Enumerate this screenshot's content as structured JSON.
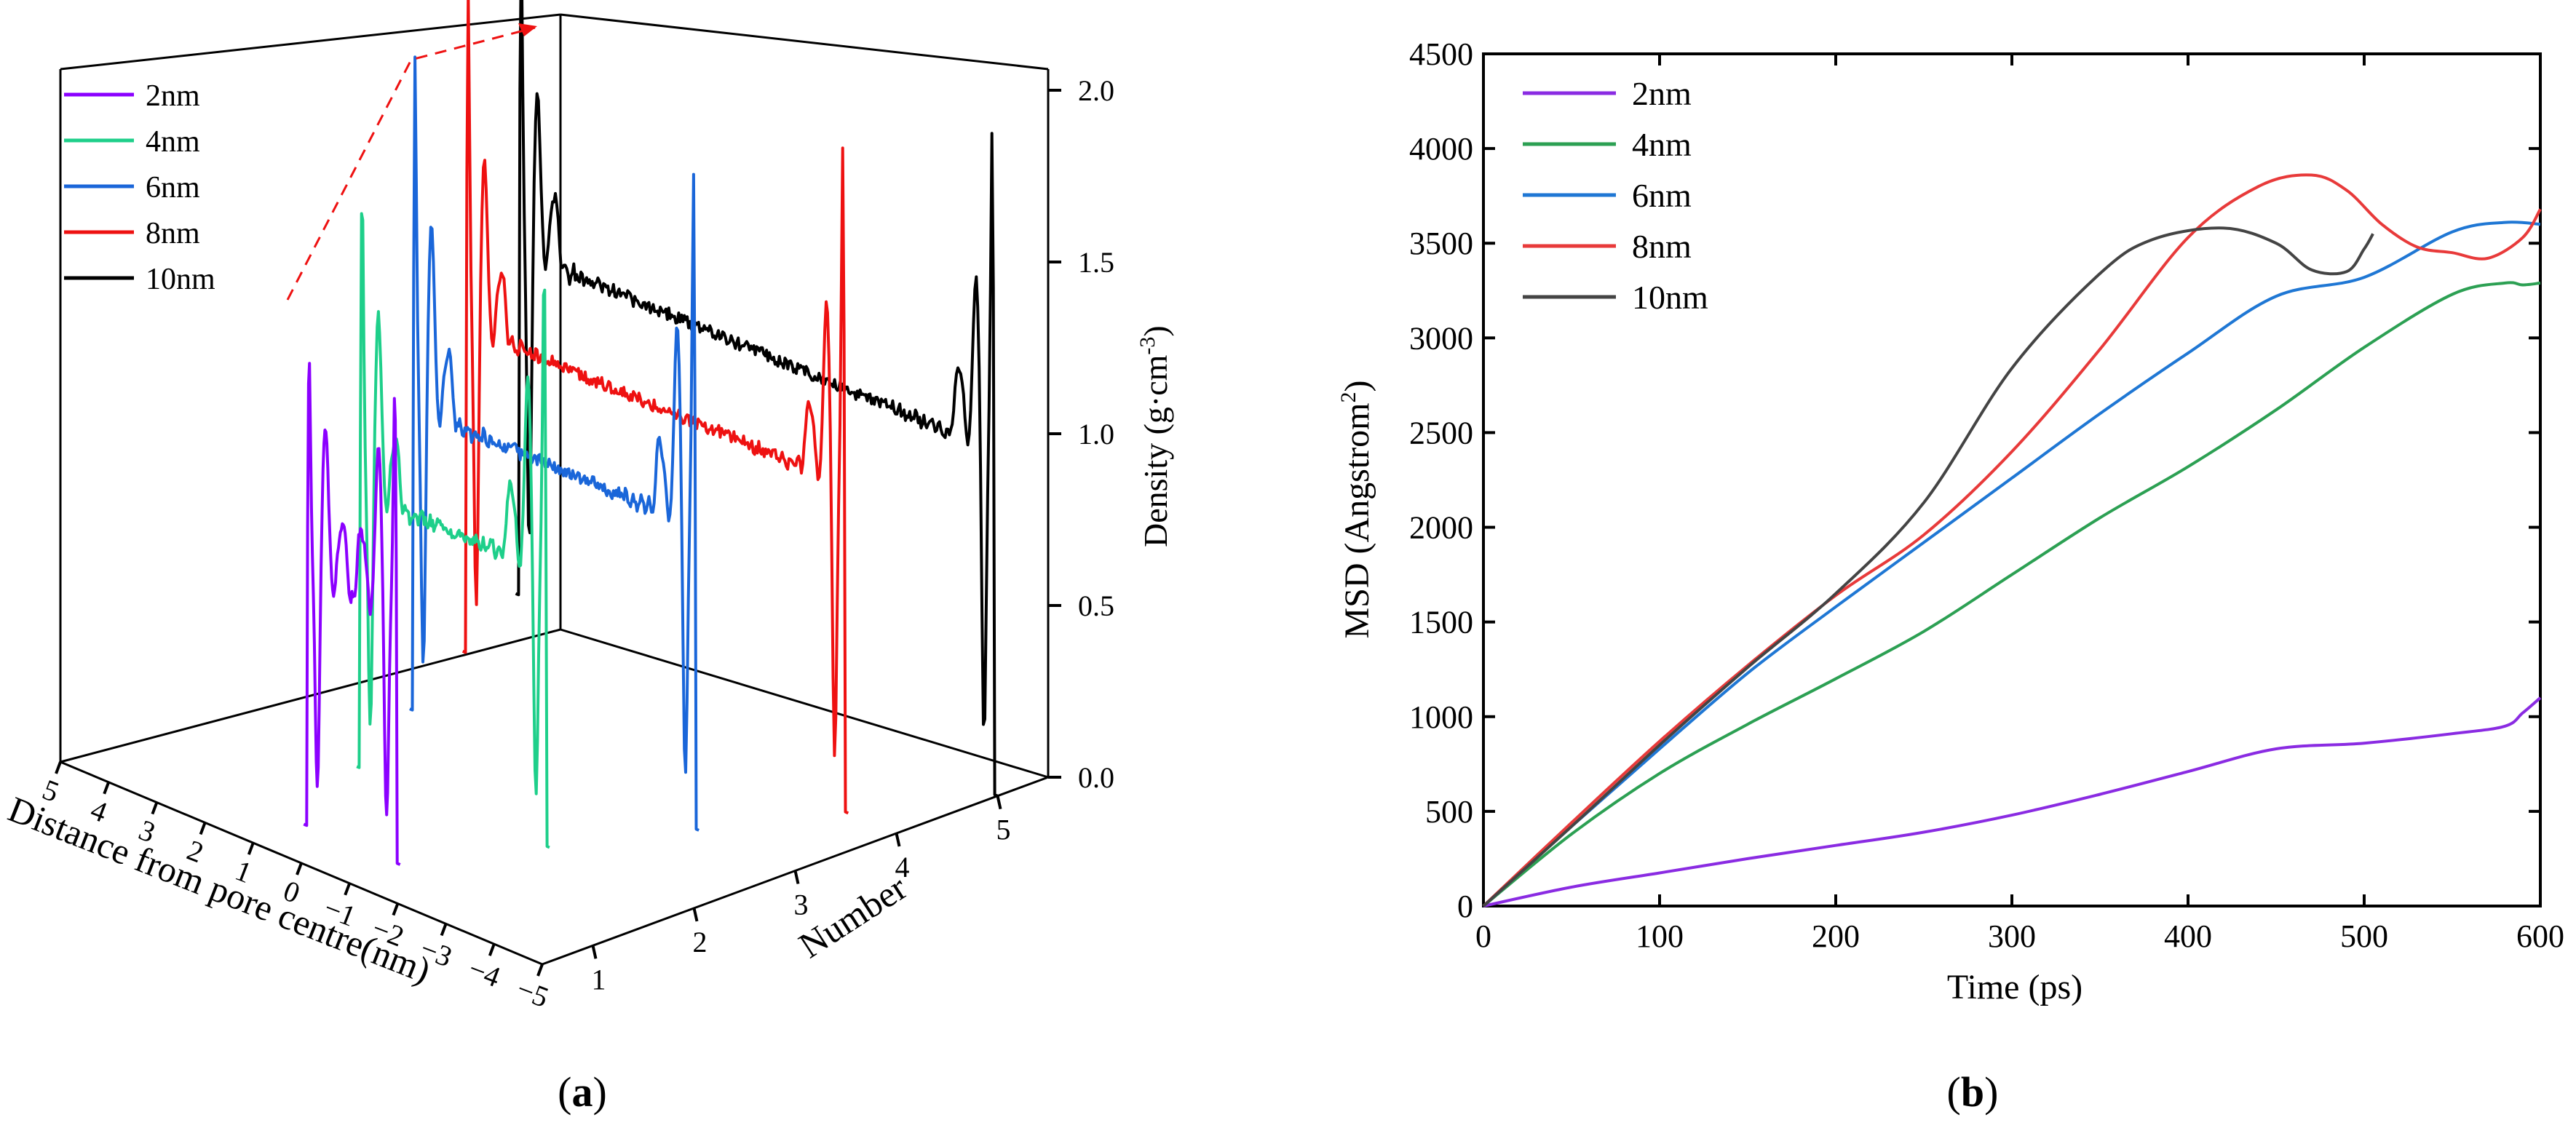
{
  "chart_data": [
    {
      "panel": "(a)",
      "type": "line",
      "projection": "3d",
      "title": "",
      "xlabel": "Distance from pore centre(nm)",
      "ylabel": "Number",
      "zlabel": "Density (g·cm⁻³)",
      "x_ticks": [
        "5",
        "4",
        "3",
        "2",
        "1",
        "0",
        "-1",
        "-2",
        "-3",
        "-4",
        "-5"
      ],
      "y_ticks": [
        "1",
        "2",
        "3",
        "4",
        "5"
      ],
      "z_ticks": [
        "0.0",
        "0.5",
        "1.0",
        "1.5",
        "2.0"
      ],
      "xlim": [
        -5,
        5
      ],
      "ylim": [
        0.5,
        5.5
      ],
      "zlim": [
        0,
        2.1
      ],
      "legend": "top-left",
      "series": [
        {
          "name": "2nm",
          "color": "#8b00ff",
          "number": 1,
          "half_width": 1.0,
          "peak": 1.5,
          "inner_peak": 1.22,
          "bulk": 0.72
        },
        {
          "name": "4nm",
          "color": "#1ecf8a",
          "number": 2,
          "half_width": 2.0,
          "peak": 1.85,
          "inner_peak": 1.38,
          "bulk": 0.8
        },
        {
          "name": "6nm",
          "color": "#1a66d9",
          "number": 3,
          "half_width": 3.0,
          "peak": 2.0,
          "inner_peak": 1.48,
          "bulk": 0.88
        },
        {
          "name": "8nm",
          "color": "#ee1111",
          "number": 4,
          "half_width": 4.0,
          "peak": 2.05,
          "inner_peak": 1.5,
          "bulk": 0.95
        },
        {
          "name": "10nm",
          "color": "#000000",
          "number": 5,
          "half_width": 5.0,
          "peak": 2.08,
          "inner_peak": 1.52,
          "bulk": 1.0
        }
      ]
    },
    {
      "panel": "(b)",
      "type": "line",
      "title": "",
      "xlabel": "Time (ps)",
      "ylabel": "MSD (Angstrom²)",
      "xlim": [
        0,
        600
      ],
      "ylim": [
        0,
        4500
      ],
      "x_ticks": [
        0,
        100,
        200,
        300,
        400,
        500,
        600
      ],
      "y_ticks": [
        0,
        500,
        1000,
        1500,
        2000,
        2500,
        3000,
        3500,
        4000,
        4500
      ],
      "legend": "top-left",
      "series": [
        {
          "name": "2nm",
          "color": "#8a2be2",
          "x": [
            0,
            50,
            100,
            150,
            200,
            250,
            300,
            350,
            400,
            450,
            500,
            550,
            580,
            590,
            600
          ],
          "y": [
            0,
            100,
            175,
            250,
            320,
            390,
            480,
            590,
            710,
            830,
            860,
            910,
            950,
            1020,
            1100
          ]
        },
        {
          "name": "4nm",
          "color": "#2ca053",
          "x": [
            0,
            50,
            100,
            150,
            200,
            250,
            300,
            350,
            400,
            450,
            500,
            550,
            580,
            590,
            600
          ],
          "y": [
            0,
            380,
            700,
            960,
            1200,
            1450,
            1750,
            2050,
            2320,
            2620,
            2950,
            3230,
            3290,
            3280,
            3290
          ]
        },
        {
          "name": "6nm",
          "color": "#1f77d4",
          "x": [
            0,
            50,
            100,
            150,
            200,
            250,
            300,
            350,
            400,
            450,
            500,
            550,
            580,
            600
          ],
          "y": [
            0,
            420,
            830,
            1230,
            1580,
            1920,
            2260,
            2600,
            2920,
            3220,
            3320,
            3560,
            3610,
            3600
          ]
        },
        {
          "name": "8nm",
          "color": "#e83a3a",
          "x": [
            0,
            50,
            100,
            150,
            200,
            250,
            300,
            350,
            400,
            440,
            470,
            490,
            510,
            530,
            550,
            570,
            590,
            600
          ],
          "y": [
            0,
            440,
            870,
            1270,
            1640,
            1960,
            2400,
            2940,
            3530,
            3800,
            3860,
            3780,
            3600,
            3480,
            3450,
            3420,
            3530,
            3680
          ]
        },
        {
          "name": "10nm",
          "color": "#444444",
          "x": [
            0,
            50,
            100,
            150,
            200,
            250,
            300,
            350,
            380,
            420,
            450,
            470,
            490,
            500,
            505
          ],
          "y": [
            0,
            420,
            850,
            1260,
            1650,
            2130,
            2840,
            3340,
            3520,
            3580,
            3500,
            3360,
            3350,
            3470,
            3550
          ]
        }
      ]
    }
  ]
}
